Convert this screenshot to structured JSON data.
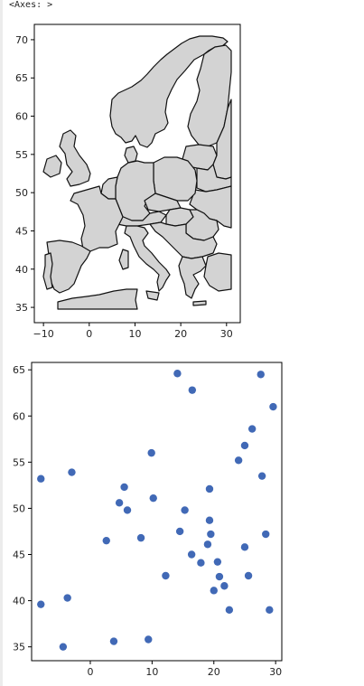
{
  "output_label": "<Axes: >",
  "colors": {
    "land": "#d3d3d3",
    "border": "#111111",
    "point": "#4169b6",
    "axis": "#000000"
  },
  "chart_data": [
    {
      "type": "map",
      "title": "",
      "xlabel": "",
      "ylabel": "",
      "xlim": [
        -12,
        33
      ],
      "ylim": [
        33,
        72
      ],
      "xticks": [
        -10,
        0,
        10,
        20,
        30
      ],
      "yticks": [
        35,
        40,
        45,
        50,
        55,
        60,
        65,
        70
      ],
      "grid": false,
      "region": "Europe"
    },
    {
      "type": "scatter",
      "title": "",
      "xlabel": "",
      "ylabel": "",
      "xlim": [
        -9.5,
        31
      ],
      "ylim": [
        33.5,
        65.8
      ],
      "xticks": [
        0,
        10,
        20,
        30
      ],
      "yticks": [
        35,
        40,
        45,
        50,
        55,
        60,
        65
      ],
      "grid": false,
      "x": [
        -8.0,
        -3.7,
        -4.4,
        3.8,
        9.4,
        -8.0,
        -3.0,
        4.7,
        5.5,
        6.0,
        2.6,
        8.2,
        10.2,
        9.9,
        14.1,
        16.5,
        15.3,
        14.5,
        12.2,
        16.4,
        17.9,
        19.0,
        19.5,
        19.3,
        19.3,
        20.0,
        20.9,
        20.6,
        21.7,
        22.5,
        24.0,
        25.0,
        25.0,
        25.6,
        26.2,
        27.6,
        27.8,
        28.4,
        29.0,
        29.6
      ],
      "y": [
        39.6,
        40.3,
        35.0,
        35.6,
        35.8,
        53.2,
        53.9,
        50.6,
        52.3,
        49.8,
        46.5,
        46.8,
        51.1,
        56.0,
        64.6,
        62.8,
        49.8,
        47.5,
        42.7,
        45.0,
        44.1,
        46.1,
        47.2,
        48.7,
        52.1,
        41.1,
        42.6,
        44.2,
        41.6,
        39.0,
        55.2,
        56.8,
        45.8,
        42.7,
        58.6,
        64.5,
        53.5,
        47.2,
        39.0,
        61.0
      ]
    }
  ]
}
